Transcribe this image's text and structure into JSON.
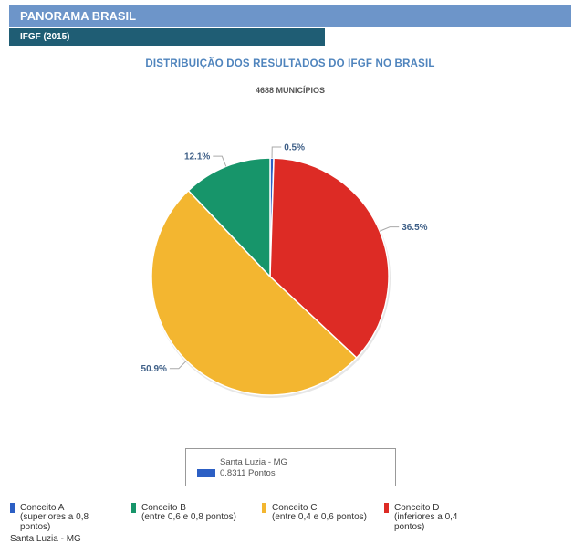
{
  "header": {
    "title": "PANORAMA BRASIL",
    "subtitle": "IFGF (2015)"
  },
  "tooltip": {
    "name": "Santa Luzia - MG",
    "value": "0.8311 Pontos",
    "swatch_color": "#2c5fc4"
  },
  "legend": {
    "items": [
      {
        "label": "Conceito A",
        "description": "(superiores a 0,8 pontos)",
        "color": "#2c5fc4"
      },
      {
        "label": "Conceito B",
        "description": "(entre 0,6 e 0,8 pontos)",
        "color": "#17956a"
      },
      {
        "label": "Conceito C",
        "description": "(entre 0,4 e 0,6 pontos)",
        "color": "#f3b630"
      },
      {
        "label": "Conceito D",
        "description": "(inferiores a 0,4 pontos)",
        "color": "#dd2b25"
      }
    ],
    "extra": "Santa Luzia - MG"
  },
  "chart_data": {
    "type": "pie",
    "title": "DISTRIBUIÇÃO DOS RESULTADOS DO IFGF NO BRASIL",
    "subtitle": "4688 MUNICÍPIOS",
    "slices": [
      {
        "category": "Conceito A",
        "value": 0.5,
        "label": "0.5%",
        "color": "#2c5fc4"
      },
      {
        "category": "Conceito D",
        "value": 36.5,
        "label": "36.5%",
        "color": "#dd2b25"
      },
      {
        "category": "Conceito C",
        "value": 50.9,
        "label": "50.9%",
        "color": "#f3b630"
      },
      {
        "category": "Conceito B",
        "value": 12.1,
        "label": "12.1%",
        "color": "#17956a"
      }
    ]
  }
}
